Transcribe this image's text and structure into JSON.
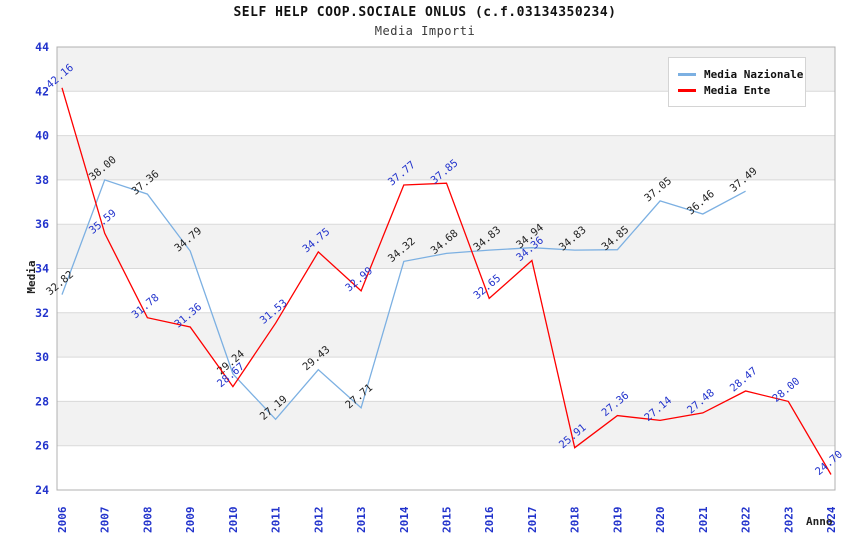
{
  "title": "SELF HELP COOP.SOCIALE ONLUS (c.f.03134350234)",
  "subtitle": "Media Importi",
  "chart_data": {
    "type": "line",
    "title": "SELF HELP COOP.SOCIALE ONLUS (c.f.03134350234)",
    "subtitle": "Media Importi",
    "xlabel": "Anno",
    "ylabel": "Media",
    "x": [
      2006,
      2007,
      2008,
      2009,
      2010,
      2011,
      2012,
      2013,
      2014,
      2015,
      2016,
      2017,
      2018,
      2019,
      2020,
      2021,
      2022,
      2023,
      2024
    ],
    "series": [
      {
        "name": "Media Nazionale",
        "color": "#7cb0e2",
        "label_color": "#222222",
        "values": [
          32.82,
          38.0,
          37.36,
          34.79,
          29.24,
          27.19,
          29.43,
          27.71,
          34.32,
          34.68,
          34.83,
          34.94,
          34.83,
          34.85,
          37.05,
          36.46,
          37.49,
          null,
          null
        ]
      },
      {
        "name": "Media Ente",
        "color": "#fe0000",
        "label_color": "#2233cc",
        "values": [
          42.16,
          35.59,
          31.78,
          31.36,
          28.67,
          31.53,
          34.75,
          32.99,
          37.77,
          37.85,
          32.65,
          34.36,
          25.91,
          27.36,
          27.14,
          27.48,
          28.47,
          28.0,
          24.7
        ]
      }
    ],
    "ylim": [
      24,
      44
    ],
    "yticks": [
      24,
      26,
      28,
      30,
      32,
      34,
      36,
      38,
      40,
      42,
      44
    ],
    "grid": true,
    "legend_position": "top-right",
    "colors": {
      "axis_tick_labels": "#2233cc",
      "band_gray": "#f2f2f2",
      "band_white": "#ffffff",
      "gridline": "#d9d9d9",
      "plot_border": "#b0b0b0"
    }
  }
}
